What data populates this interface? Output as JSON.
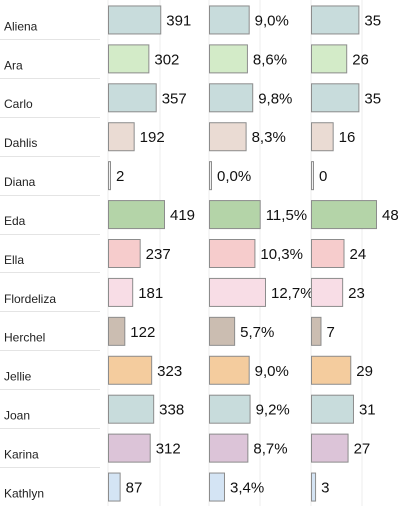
{
  "chart_data": {
    "type": "bar",
    "orientation": "horizontal",
    "categories": [
      "Aliena",
      "Ara",
      "Carlo",
      "Dahlis",
      "Diana",
      "Eda",
      "Ella",
      "Flordeliza",
      "Herchel",
      "Jellie",
      "Joan",
      "Karina",
      "Kathlyn"
    ],
    "colors": [
      "#c8dcdc",
      "#d3ebc8",
      "#c8dcdc",
      "#eadbd3",
      "#f0f0f0",
      "#b4d4a8",
      "#f6cccc",
      "#f8dde6",
      "#cbbdb1",
      "#f4cc9e",
      "#c8dcdc",
      "#dcc4d8",
      "#d4e4f4"
    ],
    "panels": [
      {
        "name": "",
        "values": [
          391,
          302,
          357,
          192,
          2,
          419,
          237,
          181,
          122,
          323,
          338,
          312,
          87
        ],
        "labels": [
          "391",
          "302",
          "357",
          "192",
          "2",
          "419",
          "237",
          "181",
          "122",
          "323",
          "338",
          "312",
          "87"
        ],
        "xlim": [
          0,
          419
        ]
      },
      {
        "name": "",
        "values": [
          9.0,
          8.6,
          9.8,
          8.3,
          0.0,
          11.5,
          10.3,
          12.7,
          5.7,
          9.0,
          9.2,
          8.7,
          3.4
        ],
        "labels": [
          "9,0%",
          "8,6%",
          "9,8%",
          "8,3%",
          "0,0%",
          "11,5%",
          "10,3%",
          "12,7%",
          "5,7%",
          "9,0%",
          "9,2%",
          "8,7%",
          "3,4%"
        ],
        "xlim": [
          0,
          12.7
        ]
      },
      {
        "name": "",
        "values": [
          35,
          26,
          35,
          16,
          0,
          48,
          24,
          23,
          7,
          29,
          31,
          27,
          3
        ],
        "labels": [
          "35",
          "26",
          "35",
          "16",
          "0",
          "48",
          "24",
          "23",
          "7",
          "29",
          "31",
          "27",
          "3"
        ],
        "xlim": [
          0,
          48
        ]
      }
    ],
    "grid": true,
    "legend": "none"
  }
}
